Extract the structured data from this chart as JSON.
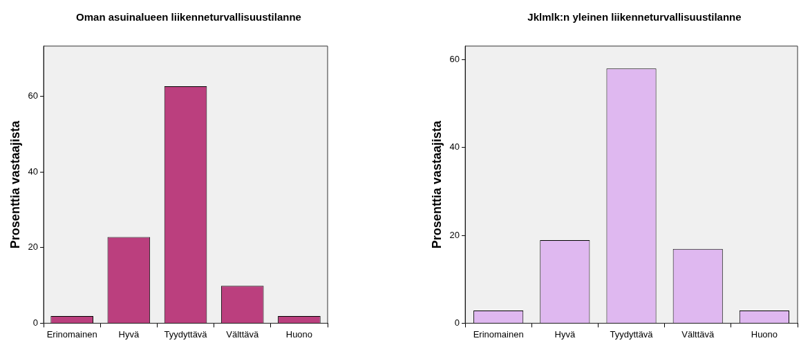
{
  "chart_data": [
    {
      "type": "bar",
      "title": "Oman asuinalueen liikenneturvallisuustilanne",
      "ylabel": "Prosenttia vastaajista",
      "categories": [
        "Erinomainen",
        "Hyvä",
        "Tyydyttävä",
        "Välttävä",
        "Huono"
      ],
      "values": [
        1.9,
        22.8,
        62.7,
        9.9,
        1.9
      ],
      "color": "#bb3f7e",
      "ylim": [
        0,
        73.3
      ],
      "yticks": [
        0,
        20,
        40,
        60
      ],
      "grid": false
    },
    {
      "type": "bar",
      "title": "Jklmlk:n yleinen liikenneturvallisuustilanne",
      "ylabel": "Prosenttia vastaajista",
      "categories": [
        "Erinomainen",
        "Hyvä",
        "Tyydyttävä",
        "Välttävä",
        "Huono"
      ],
      "values": [
        2.9,
        18.9,
        58.0,
        16.9,
        2.9
      ],
      "color": "#dfb8f0",
      "ylim": [
        0,
        63.1
      ],
      "yticks": [
        0,
        20,
        40,
        60
      ],
      "grid": false
    }
  ]
}
